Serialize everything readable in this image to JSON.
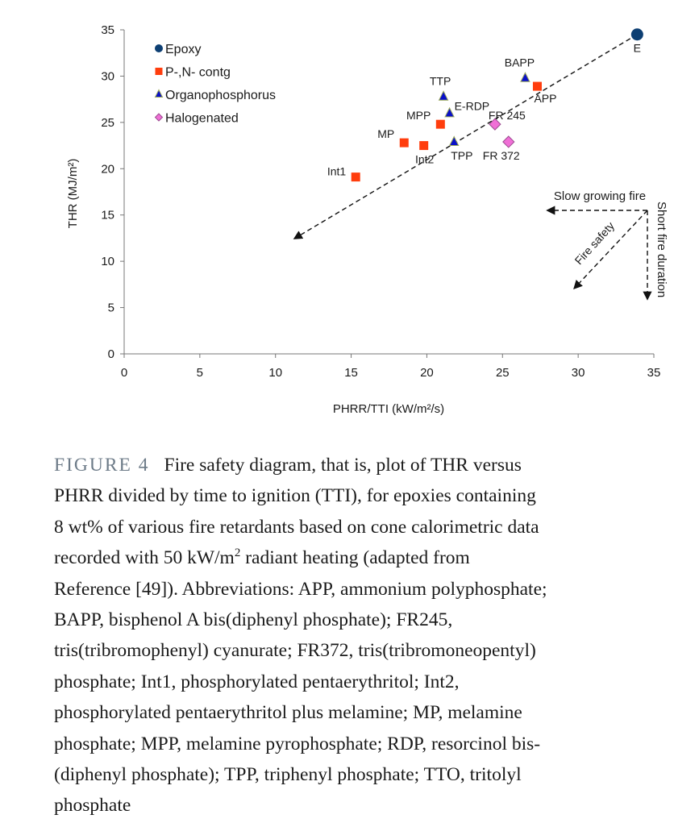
{
  "chart_data": {
    "type": "scatter",
    "xlabel": "PHRR/TTI (kW/m²/s)",
    "ylabel": "THR (MJ/m²)",
    "xlim": [
      0,
      35
    ],
    "ylim": [
      0,
      35
    ],
    "xticks": [
      0,
      5,
      10,
      15,
      20,
      25,
      30,
      35
    ],
    "yticks": [
      0,
      5,
      10,
      15,
      20,
      25,
      30,
      35
    ],
    "grid": false,
    "legend_position": "top-left",
    "series": [
      {
        "name": "Epoxy",
        "marker": "circle",
        "color": "#0d3f73",
        "points": [
          {
            "label": "E",
            "x": 33.9,
            "y": 34.5
          }
        ]
      },
      {
        "name": "P-,N- contg",
        "marker": "square",
        "color": "#ff3d0d",
        "points": [
          {
            "label": "APP",
            "x": 27.3,
            "y": 28.9
          },
          {
            "label": "MPP",
            "x": 20.9,
            "y": 24.8
          },
          {
            "label": "MP",
            "x": 18.5,
            "y": 22.8
          },
          {
            "label": "Int2",
            "x": 19.8,
            "y": 22.5
          },
          {
            "label": "Int1",
            "x": 15.3,
            "y": 19.1
          }
        ]
      },
      {
        "name": "Organophosphorus",
        "marker": "triangle",
        "color": "#0a10c8",
        "points": [
          {
            "label": "BAPP",
            "x": 26.5,
            "y": 29.8
          },
          {
            "label": "TTP",
            "x": 21.1,
            "y": 27.8
          },
          {
            "label": "E-RDP",
            "x": 21.5,
            "y": 26.0
          },
          {
            "label": "TPP",
            "x": 21.8,
            "y": 22.9
          }
        ]
      },
      {
        "name": "Halogenated",
        "marker": "diamond",
        "color": "#f06fd6",
        "points": [
          {
            "label": "FR 245",
            "x": 24.5,
            "y": 24.8
          },
          {
            "label": "FR 372",
            "x": 25.4,
            "y": 22.9
          }
        ]
      }
    ],
    "trend_line": {
      "from": {
        "x": 11.3,
        "y": 12.5
      },
      "to": {
        "x": 33.9,
        "y": 34.5
      }
    },
    "annotations": {
      "slow_growing": "Slow growing fire",
      "short_duration": "Short fire duration",
      "fire_safety": "Fire safety"
    }
  },
  "caption": {
    "figure_label": "FIGURE 4",
    "lines": [
      "Fire safety diagram, that is, plot of THR versus",
      "PHRR divided by time to ignition (TTI), for epoxies containing",
      "8 wt% of various fire retardants based on cone calorimetric data",
      "recorded with 50 kW/m",
      "2",
      " radiant heating (adapted from",
      "Reference [49]). Abbreviations: APP, ammonium polyphosphate;",
      "BAPP, bisphenol A bis(diphenyl phosphate); FR245,",
      "tris(tribromophenyl) cyanurate; FR372, tris(tribromoneopentyl)",
      "phosphate; Int1, phosphorylated pentaerythritol; Int2,",
      "phosphorylated pentaerythritol plus melamine; MP, melamine",
      "phosphate; MPP, melamine pyrophosphate; RDP, resorcinol bis-",
      "(diphenyl phosphate); TPP, triphenyl phosphate; TTO, tritolyl",
      "phosphate"
    ]
  }
}
